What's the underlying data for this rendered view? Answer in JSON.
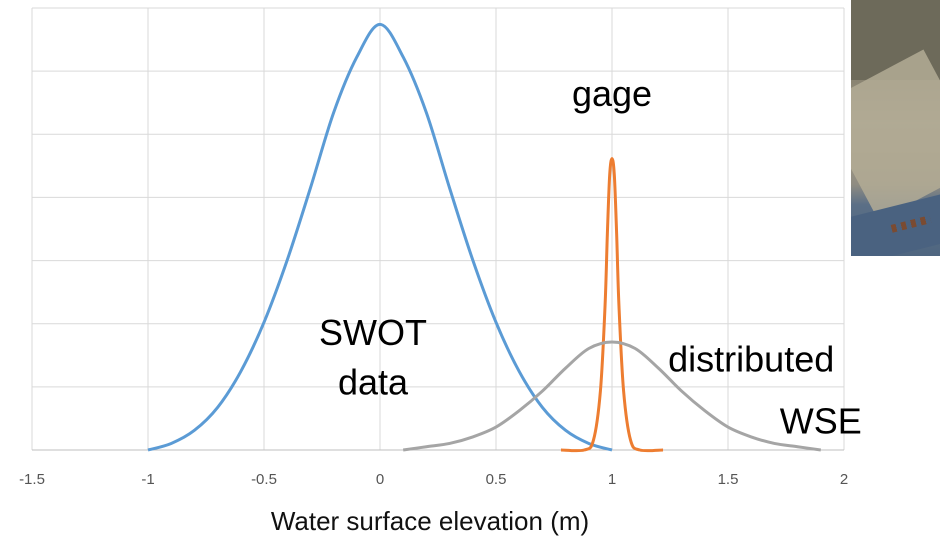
{
  "chart_data": {
    "type": "line",
    "title": "",
    "xlabel": "Water surface elevation (m)",
    "ylabel": "",
    "xlim": [
      -1.5,
      2
    ],
    "ylim": [
      0,
      1.35
    ],
    "x_ticks": [
      "-1.5",
      "-1",
      "-0.5",
      "0",
      "0.5",
      "1",
      "1.5",
      "2"
    ],
    "grid": true,
    "series": [
      {
        "color": "#5B9BD5",
        "x": [
          -1.0,
          -0.9,
          -0.8,
          -0.7,
          -0.6,
          -0.5,
          -0.4,
          -0.3,
          -0.2,
          -0.1,
          0.0,
          0.1,
          0.2,
          0.3,
          0.4,
          0.5,
          0.6,
          0.7,
          0.8,
          0.9,
          1.0
        ],
        "y": [
          0.0,
          0.02,
          0.06,
          0.13,
          0.24,
          0.39,
          0.58,
          0.8,
          1.03,
          1.2,
          1.3,
          1.2,
          1.03,
          0.8,
          0.58,
          0.39,
          0.24,
          0.13,
          0.06,
          0.02,
          0.0
        ]
      },
      {
        "color": "#ED7D31",
        "x": [
          0.78,
          0.88,
          0.92,
          0.95,
          0.97,
          0.98,
          0.99,
          1.0,
          1.01,
          1.02,
          1.03,
          1.05,
          1.08,
          1.12,
          1.22
        ],
        "y": [
          0.0,
          0.0,
          0.03,
          0.18,
          0.44,
          0.66,
          0.84,
          0.89,
          0.84,
          0.66,
          0.44,
          0.18,
          0.03,
          0.0,
          0.0
        ]
      },
      {
        "color": "#A5A5A5",
        "x": [
          0.1,
          0.2,
          0.3,
          0.4,
          0.5,
          0.6,
          0.7,
          0.8,
          0.9,
          1.0,
          1.1,
          1.2,
          1.3,
          1.4,
          1.5,
          1.6,
          1.7,
          1.8,
          1.9
        ],
        "y": [
          0.0,
          0.01,
          0.02,
          0.04,
          0.07,
          0.12,
          0.18,
          0.25,
          0.31,
          0.33,
          0.31,
          0.25,
          0.18,
          0.12,
          0.07,
          0.04,
          0.02,
          0.01,
          0.0
        ]
      }
    ],
    "annotations": [
      {
        "text": "gage",
        "x": 1.0,
        "y": 1.05
      },
      {
        "text": "SWOT",
        "x": -0.03,
        "y": 0.32
      },
      {
        "text": "data",
        "x": -0.03,
        "y": 0.17
      },
      {
        "text": "distributed",
        "x": 1.6,
        "y": 0.24
      },
      {
        "text": "WSE",
        "x": 1.9,
        "y": 0.05
      }
    ]
  }
}
